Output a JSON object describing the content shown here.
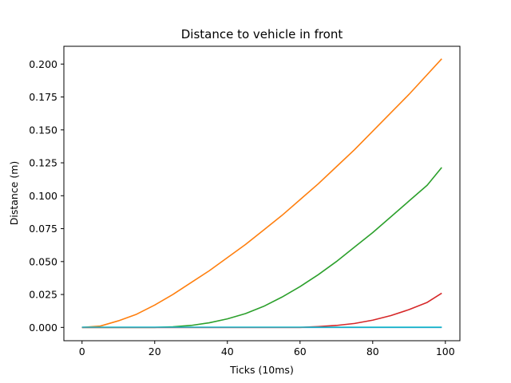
{
  "chart_data": {
    "type": "line",
    "title": "Distance to vehicle in front",
    "xlabel": "Ticks (10ms)",
    "ylabel": "Distance (m)",
    "xlim": [
      -5,
      104
    ],
    "ylim": [
      -0.0101,
      0.2135
    ],
    "xticks": [
      0,
      20,
      40,
      60,
      80,
      100
    ],
    "xtick_labels": [
      "0",
      "20",
      "40",
      "60",
      "80",
      "100"
    ],
    "yticks": [
      0.0,
      0.025,
      0.05,
      0.075,
      0.1,
      0.125,
      0.15,
      0.175,
      0.2
    ],
    "ytick_labels": [
      "0.000",
      "0.025",
      "0.050",
      "0.075",
      "0.100",
      "0.125",
      "0.150",
      "0.175",
      "0.200"
    ],
    "grid": false,
    "legend": false,
    "series": [
      {
        "color": "#1f77b4",
        "x": [
          0,
          20,
          40,
          60,
          80,
          99
        ],
        "values": [
          0,
          0,
          0,
          0,
          0,
          0
        ]
      },
      {
        "color": "#ff7f0e",
        "x": [
          0,
          5,
          10,
          15,
          20,
          25,
          30,
          35,
          40,
          45,
          50,
          55,
          60,
          65,
          70,
          75,
          80,
          85,
          90,
          95,
          99
        ],
        "values": [
          0,
          0.001,
          0.005,
          0.01,
          0.017,
          0.025,
          0.034,
          0.043,
          0.053,
          0.063,
          0.074,
          0.085,
          0.097,
          0.109,
          0.122,
          0.135,
          0.149,
          0.163,
          0.177,
          0.192,
          0.204
        ]
      },
      {
        "color": "#2ca02c",
        "x": [
          0,
          20,
          25,
          30,
          35,
          40,
          45,
          50,
          55,
          60,
          65,
          70,
          75,
          80,
          85,
          90,
          95,
          99
        ],
        "values": [
          0,
          0,
          0.0005,
          0.0015,
          0.0035,
          0.0065,
          0.0105,
          0.016,
          0.023,
          0.031,
          0.04,
          0.05,
          0.061,
          0.072,
          0.084,
          0.096,
          0.108,
          0.1215
        ]
      },
      {
        "color": "#d62728",
        "x": [
          0,
          60,
          65,
          70,
          75,
          80,
          85,
          90,
          95,
          99
        ],
        "values": [
          0,
          0,
          0.0006,
          0.0015,
          0.003,
          0.0055,
          0.009,
          0.0135,
          0.019,
          0.026
        ]
      },
      {
        "color": "#17becf",
        "x": [
          0,
          20,
          40,
          60,
          80,
          99
        ],
        "values": [
          0.0002,
          0.0002,
          0.0002,
          0.0002,
          0.0002,
          0.0002
        ]
      }
    ]
  }
}
